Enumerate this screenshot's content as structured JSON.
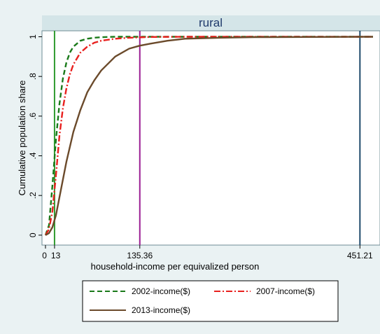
{
  "chart_data": {
    "type": "line",
    "title": "rural",
    "xlabel": "household-income per equivalized person",
    "ylabel": "Cumulative population share",
    "xlim": [
      -5,
      480
    ],
    "ylim": [
      -0.05,
      1.03
    ],
    "xticks": [
      {
        "value": 0,
        "label": "0"
      },
      {
        "value": 13,
        "label": "13"
      },
      {
        "value": 135.36,
        "label": "135.36"
      },
      {
        "value": 451.21,
        "label": "451.21"
      }
    ],
    "yticks": [
      {
        "value": 0,
        "label": "0"
      },
      {
        "value": 0.2,
        "label": ".2"
      },
      {
        "value": 0.4,
        "label": ".4"
      },
      {
        "value": 0.6,
        "label": ".6"
      },
      {
        "value": 0.8,
        "label": ".8"
      },
      {
        "value": 1,
        "label": "1"
      }
    ],
    "vlines": [
      {
        "x": 13,
        "color": "#2e9a2e"
      },
      {
        "x": 135.36,
        "color": "#9b1f93"
      },
      {
        "x": 451.21,
        "color": "#1f4a6b"
      }
    ],
    "series": [
      {
        "name": "2002-income($)",
        "color": "#1a7a1a",
        "dash": "dash",
        "x": [
          0,
          5,
          10,
          15,
          20,
          25,
          30,
          35,
          40,
          50,
          60,
          70,
          80,
          100,
          120,
          150,
          200,
          470
        ],
        "y": [
          0,
          0.05,
          0.25,
          0.48,
          0.66,
          0.79,
          0.87,
          0.92,
          0.95,
          0.98,
          0.99,
          0.995,
          0.998,
          1,
          1,
          1,
          1,
          1
        ]
      },
      {
        "name": "2007-income($)",
        "color": "#e8201e",
        "dash": "dashdot",
        "x": [
          0,
          5,
          10,
          15,
          20,
          25,
          30,
          35,
          40,
          50,
          60,
          70,
          80,
          100,
          120,
          150,
          200,
          470
        ],
        "y": [
          0,
          0.03,
          0.12,
          0.3,
          0.5,
          0.64,
          0.74,
          0.81,
          0.86,
          0.92,
          0.95,
          0.97,
          0.98,
          0.99,
          0.995,
          0.999,
          1,
          1
        ]
      },
      {
        "name": "2013-income($)",
        "color": "#6b4a2b",
        "dash": "solid",
        "x": [
          0,
          5,
          10,
          15,
          20,
          30,
          40,
          50,
          60,
          70,
          80,
          100,
          120,
          135,
          150,
          175,
          200,
          250,
          300,
          470
        ],
        "y": [
          0,
          0.01,
          0.04,
          0.1,
          0.19,
          0.37,
          0.52,
          0.63,
          0.72,
          0.78,
          0.83,
          0.9,
          0.94,
          0.955,
          0.965,
          0.98,
          0.99,
          0.995,
          0.998,
          1
        ]
      }
    ],
    "legend_position": "bottom"
  }
}
